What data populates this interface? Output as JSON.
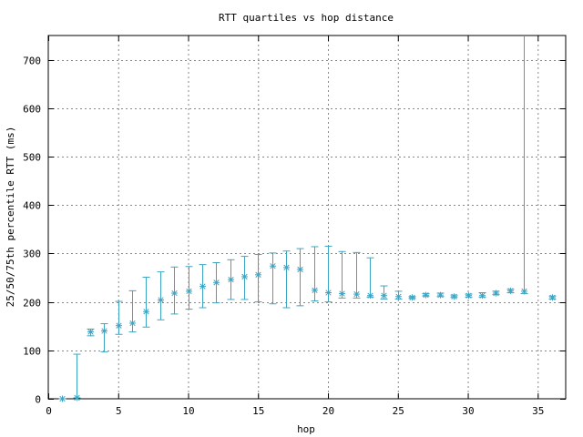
{
  "chart_data": {
    "type": "errorbar",
    "title": "RTT quartiles vs hop distance",
    "xlabel": "hop",
    "ylabel": "25/50/75th percentile RTT (ms)",
    "xlim": [
      0,
      37
    ],
    "ylim": [
      0,
      750
    ],
    "xticks": [
      0,
      5,
      10,
      15,
      20,
      25,
      30,
      35
    ],
    "yticks": [
      0,
      100,
      200,
      300,
      400,
      500,
      600,
      700
    ],
    "grid": true,
    "color": "#3da5c4",
    "series": [
      {
        "name": "RTT quartiles",
        "hop": [
          1,
          2,
          3,
          4,
          5,
          6,
          7,
          8,
          9,
          10,
          11,
          12,
          13,
          14,
          15,
          16,
          17,
          18,
          19,
          20,
          21,
          22,
          23,
          24,
          25,
          26,
          27,
          28,
          29,
          30,
          31,
          32,
          33,
          34,
          36
        ],
        "median": [
          0,
          2,
          138,
          140,
          151,
          156,
          180,
          204,
          218,
          222,
          232,
          240,
          246,
          252,
          256,
          274,
          271,
          267,
          224,
          219,
          217,
          216,
          213,
          213,
          211,
          209,
          214,
          214,
          211,
          213,
          213,
          218,
          223,
          222,
          209
        ],
        "p25": [
          0,
          2,
          130,
          97,
          133,
          138,
          148,
          163,
          175,
          185,
          188,
          198,
          205,
          205,
          200,
          196,
          188,
          192,
          202,
          200,
          208,
          208,
          210,
          206,
          206,
          207,
          212,
          211,
          209,
          210,
          210,
          215,
          219,
          217,
          206
        ],
        "p75": [
          0,
          92,
          144,
          155,
          201,
          223,
          251,
          262,
          272,
          273,
          277,
          281,
          287,
          294,
          298,
          301,
          305,
          310,
          314,
          315,
          304,
          302,
          291,
          233,
          222,
          211,
          217,
          218,
          214,
          216,
          219,
          222,
          226,
          750,
          212
        ]
      }
    ]
  }
}
